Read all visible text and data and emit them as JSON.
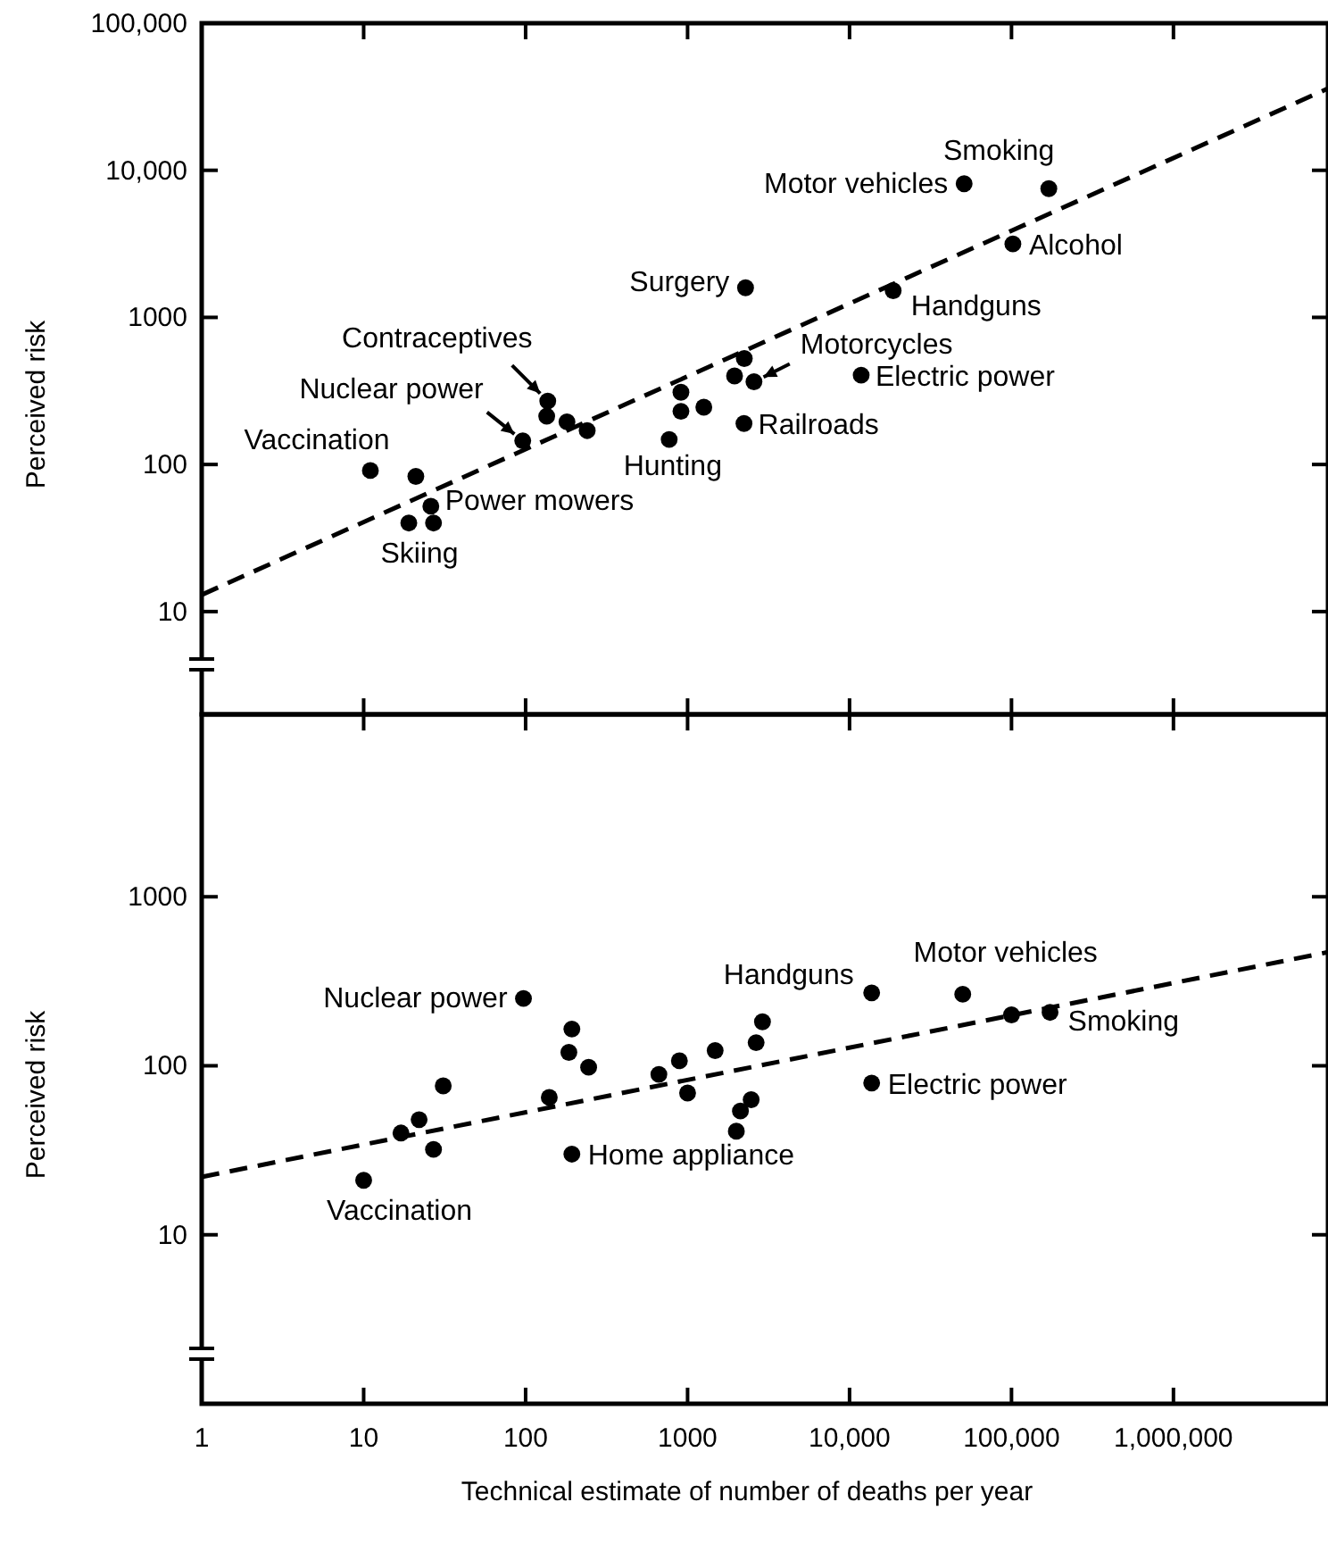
{
  "chart_data": [
    {
      "type": "scatter",
      "ylabel": "Perceived risk",
      "log": "xy",
      "tick_labels": "y",
      "marker": "circle",
      "grid": false,
      "xlim": [
        1,
        9000000
      ],
      "ylim": [
        2,
        100000
      ],
      "xticks": [
        1,
        10,
        100,
        1000,
        10000,
        100000,
        1000000
      ],
      "yticks": [
        10,
        100,
        1000,
        {
          "value": 10000,
          "label": "10,000"
        },
        {
          "value": 100000,
          "label": "100,000"
        }
      ],
      "series": [
        {
          "type": "scatter",
          "color": "#000000",
          "x": [
            11,
            21,
            26,
            19,
            27,
            137,
            135,
            180,
            240,
            96,
            770,
            910,
            910,
            1260,
            2280,
            2240,
            1950,
            2570,
            2230,
            11800,
            18600,
            102000,
            51000,
            170000
          ],
          "values": [
            91,
            83,
            52,
            40,
            40,
            270,
            213,
            195,
            170,
            145,
            148,
            310,
            230,
            245,
            1590,
            525,
            400,
            365,
            190,
            405,
            1520,
            3160,
            8100,
            7500
          ]
        },
        {
          "type": "line",
          "color": "#000000",
          "line_style": "dashed",
          "marker": "none",
          "x": [
            1,
            9000000
          ],
          "values": [
            13,
            36000
          ]
        }
      ],
      "annotations": [
        {
          "text": "Smoking",
          "x": 170000,
          "y": 7500
        },
        {
          "text": "Motor vehicles",
          "x": 51000,
          "y": 8100
        },
        {
          "text": "Alcohol",
          "x": 102000,
          "y": 3160
        },
        {
          "text": "Handguns",
          "x": 18600,
          "y": 1520
        },
        {
          "text": "Surgery",
          "x": 2280,
          "y": 1590
        },
        {
          "text": "Motorcycles",
          "x": 2570,
          "y": 365
        },
        {
          "text": "Electric power",
          "x": 11800,
          "y": 405
        },
        {
          "text": "Railroads",
          "x": 2230,
          "y": 190
        },
        {
          "text": "Hunting",
          "x": 770,
          "y": 148
        },
        {
          "text": "Contraceptives",
          "x": 137,
          "y": 270
        },
        {
          "text": "Nuclear power",
          "x": 96,
          "y": 145
        },
        {
          "text": "Vaccination",
          "x": 11,
          "y": 91
        },
        {
          "text": "Power mowers",
          "x": 26,
          "y": 52
        },
        {
          "text": "Skiing",
          "x": 19,
          "y": 40
        }
      ]
    },
    {
      "type": "scatter",
      "ylabel": "Perceived risk",
      "xlabel": "Technical estimate of number of deaths per year",
      "log": "xy",
      "marker": "circle",
      "grid": false,
      "xlim": [
        1,
        9000000
      ],
      "ylim": [
        1,
        12000
      ],
      "xticks": [
        1,
        10,
        100,
        1000,
        {
          "value": 10000,
          "label": "10,000"
        },
        {
          "value": 100000,
          "label": "100,000"
        },
        {
          "value": 1000000,
          "label": "1,000,000"
        }
      ],
      "yticks": [
        10,
        100,
        1000
      ],
      "series": [
        {
          "type": "scatter",
          "color": "#000000",
          "x": [
            10,
            17,
            22,
            27,
            31,
            97,
            193,
            185,
            245,
            140,
            193,
            665,
            890,
            1000,
            1480,
            2900,
            2650,
            2470,
            2120,
            2000,
            13700,
            13700,
            50000,
            100000,
            173000
          ],
          "values": [
            21,
            40,
            48,
            32,
            76,
            250,
            165,
            120,
            98,
            65,
            30,
            89,
            107,
            69,
            123,
            182,
            137,
            63,
            54,
            41,
            270,
            79,
            265,
            200,
            207
          ]
        },
        {
          "type": "line",
          "color": "#000000",
          "line_style": "dashed",
          "marker": "none",
          "x": [
            1,
            9000000
          ],
          "values": [
            22,
            470
          ]
        }
      ],
      "annotations": [
        {
          "text": "Nuclear power",
          "x": 97,
          "y": 250
        },
        {
          "text": "Vaccination",
          "x": 10,
          "y": 21
        },
        {
          "text": "Home appliance",
          "x": 193,
          "y": 30
        },
        {
          "text": "Handguns",
          "x": 13700,
          "y": 270
        },
        {
          "text": "Motor vehicles",
          "x": 50000,
          "y": 265
        },
        {
          "text": "Smoking",
          "x": 173000,
          "y": 207
        },
        {
          "text": "Electric power",
          "x": 13700,
          "y": 79
        }
      ]
    }
  ]
}
